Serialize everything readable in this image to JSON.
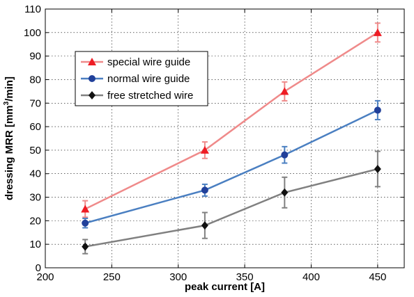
{
  "chart_data": {
    "type": "line",
    "title": "",
    "xlabel": "peak current [A]",
    "ylabel_pre": "dressing MRR [mm",
    "ylabel_sup": "3",
    "ylabel_post": "/min]",
    "xlim": [
      200,
      470
    ],
    "ylim": [
      0,
      110
    ],
    "xticks": [
      200,
      250,
      300,
      350,
      400,
      450
    ],
    "yticks": [
      0,
      10,
      20,
      30,
      40,
      50,
      60,
      70,
      80,
      90,
      100,
      110
    ],
    "grid": true,
    "legend_position": "upper-left",
    "x": [
      230,
      320,
      380,
      450
    ],
    "series": [
      {
        "name": "special wire guide",
        "values": [
          25,
          50,
          75,
          100
        ],
        "errors": [
          3.5,
          3.5,
          4,
          4
        ],
        "line_color": "#ef8a8a",
        "marker_color": "#ee1c24",
        "marker": "triangle"
      },
      {
        "name": "normal wire guide",
        "values": [
          19,
          33,
          48,
          67
        ],
        "errors": [
          2,
          2.5,
          3.5,
          4
        ],
        "line_color": "#4a7fc1",
        "marker_color": "#21409a",
        "marker": "circle"
      },
      {
        "name": "free stretched wire",
        "values": [
          9,
          18,
          32,
          42
        ],
        "errors": [
          3,
          5.5,
          6.5,
          7.5
        ],
        "line_color": "#808080",
        "marker_color": "#111111",
        "marker": "diamond"
      }
    ]
  }
}
